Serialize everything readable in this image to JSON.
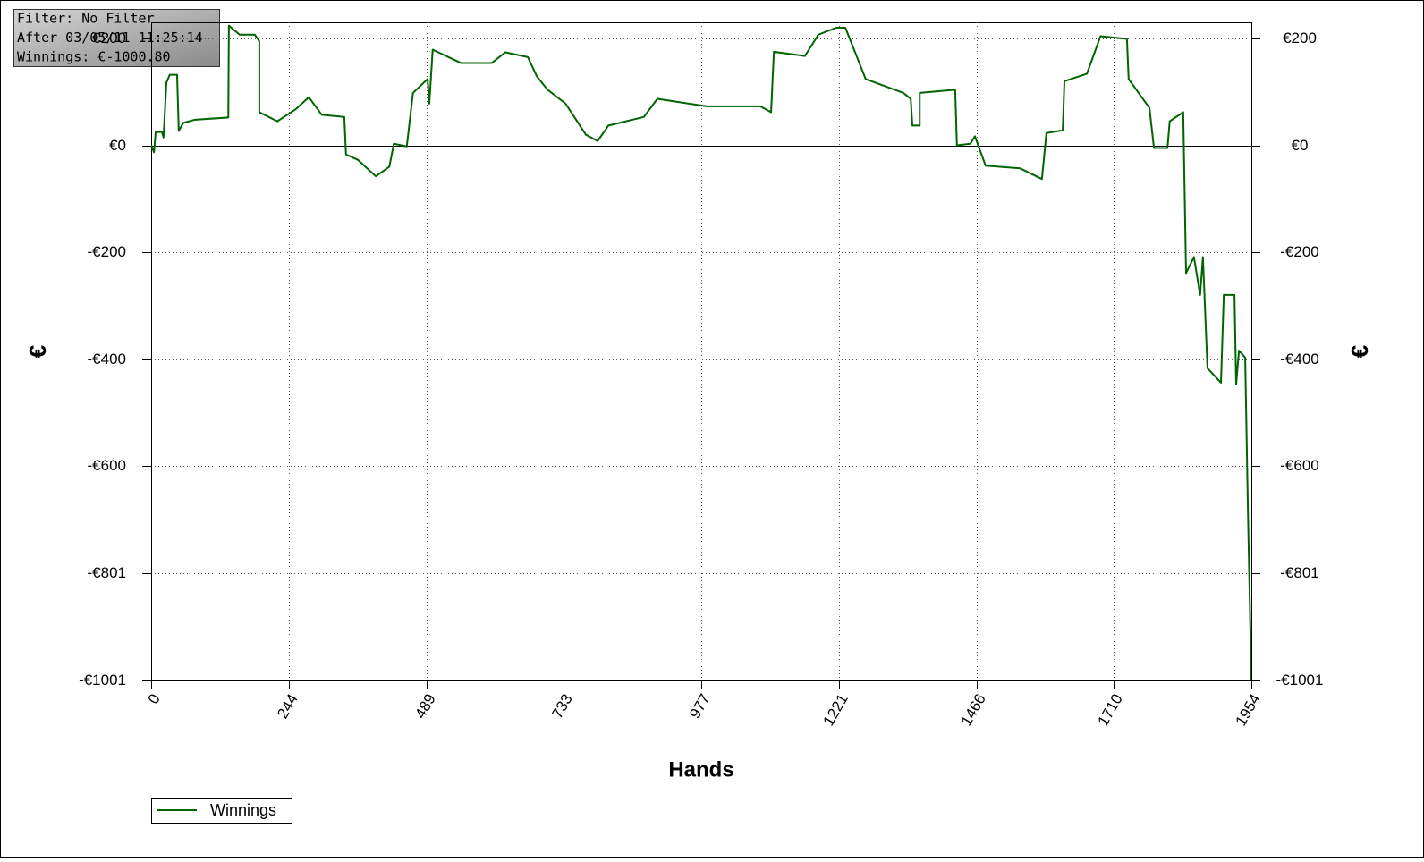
{
  "chart_data": {
    "type": "line",
    "info_box": [
      "Filter: No Filter",
      "After 03/05/11 11:25:14",
      "Winnings: €-1000.80"
    ],
    "xlabel": "Hands",
    "ylabel": "€",
    "x": [
      0,
      5,
      8,
      19,
      22,
      27,
      33,
      46,
      49,
      57,
      78,
      137,
      138,
      157,
      184,
      192,
      192,
      224,
      256,
      280,
      303,
      343,
      346,
      367,
      399,
      423,
      431,
      454,
      465,
      491,
      494,
      500,
      550,
      605,
      629,
      669,
      685,
      704,
      736,
      772,
      793,
      812,
      875,
      899,
      987,
      1082,
      1101,
      1106,
      1161,
      1185,
      1217,
      1233,
      1269,
      1336,
      1349,
      1352,
      1365,
      1365,
      1428,
      1431,
      1455,
      1463,
      1482,
      1543,
      1582,
      1590,
      1619,
      1622,
      1662,
      1686,
      1733,
      1736,
      1773,
      1781,
      1805,
      1809,
      1833,
      1838,
      1852,
      1863,
      1868,
      1876,
      1900,
      1905,
      1924,
      1927,
      1932,
      1943,
      1948,
      1954
    ],
    "series": [
      {
        "name": "Winnings",
        "color": "#006400",
        "values": [
          0,
          -13,
          25,
          25,
          15,
          117,
          132,
          132,
          27,
          42,
          48,
          52,
          224,
          207,
          207,
          195,
          62,
          45,
          67,
          90,
          57,
          53,
          -17,
          -27,
          -58,
          -40,
          3,
          -2,
          98,
          124,
          78,
          179,
          154,
          154,
          174,
          165,
          129,
          104,
          78,
          20,
          8,
          37,
          53,
          87,
          73,
          73,
          62,
          175,
          167,
          207,
          220,
          220,
          124,
          98,
          87,
          37,
          37,
          98,
          104,
          0,
          3,
          17,
          -38,
          -43,
          -63,
          23,
          28,
          120,
          134,
          204,
          199,
          124,
          70,
          -5,
          -5,
          45,
          62,
          -239,
          -209,
          -280,
          -209,
          -417,
          -444,
          -280,
          -280,
          -447,
          -384,
          -397,
          -689,
          -1000.8
        ]
      }
    ],
    "xlim": [
      0,
      1954
    ],
    "ylim": [
      -1001,
      230
    ],
    "xticks": [
      0,
      244,
      489,
      733,
      977,
      1221,
      1466,
      1710,
      1954
    ],
    "yticks": [
      {
        "value": 200,
        "label": "€200"
      },
      {
        "value": 0,
        "label": "€0"
      },
      {
        "value": -200,
        "label": "-€200"
      },
      {
        "value": -400,
        "label": "-€400"
      },
      {
        "value": -600,
        "label": "-€600"
      },
      {
        "value": -801,
        "label": "-€801"
      },
      {
        "value": -1001,
        "label": "-€1001"
      }
    ],
    "grid": true,
    "legend": "bottom-left"
  }
}
